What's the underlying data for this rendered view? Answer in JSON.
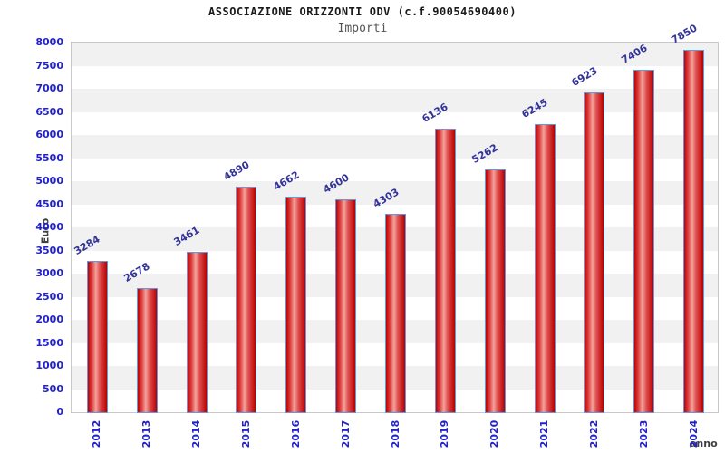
{
  "title": "ASSOCIAZIONE ORIZZONTI ODV (c.f.90054690400)",
  "subtitle": "Importi",
  "chart_data": {
    "type": "bar",
    "categories": [
      "2012",
      "2013",
      "2014",
      "2015",
      "2016",
      "2017",
      "2018",
      "2019",
      "2020",
      "2021",
      "2022",
      "2023",
      "2024"
    ],
    "values": [
      3284,
      2678,
      3461,
      4890,
      4662,
      4600,
      4303,
      6136,
      5262,
      6245,
      6923,
      7406,
      7850
    ],
    "title": "ASSOCIAZIONE ORIZZONTI ODV (c.f.90054690400)",
    "subtitle": "Importi",
    "xlabel": "anno",
    "ylabel": "Euro",
    "ylim": [
      0,
      8000
    ],
    "ytick_step": 500,
    "grid": "horizontal-alternating-bands",
    "legend": "none",
    "colors": {
      "bar_fill": "#d42222",
      "bar_border": "#5b9be0",
      "tick_label": "#2222cc",
      "value_label": "#333399",
      "band_gray": "#f1f1f1",
      "band_white": "#ffffff",
      "axis_label": "#404040"
    }
  }
}
